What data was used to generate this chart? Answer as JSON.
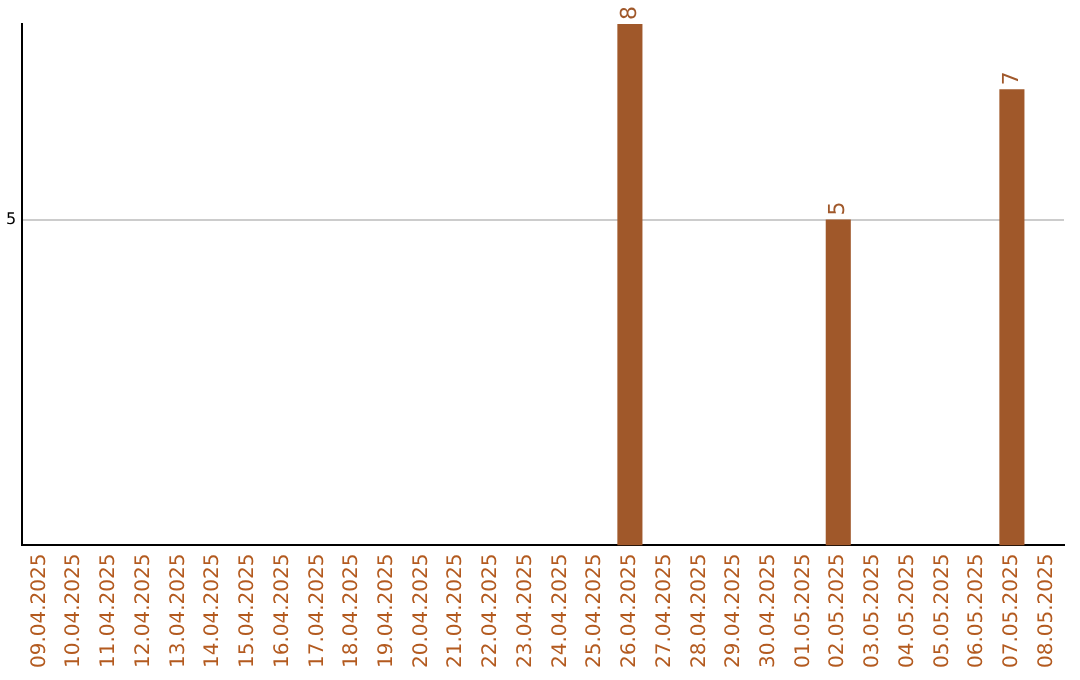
{
  "chart_data": {
    "type": "bar",
    "categories": [
      "09.04.2025",
      "10.04.2025",
      "11.04.2025",
      "12.04.2025",
      "13.04.2025",
      "14.04.2025",
      "15.04.2025",
      "16.04.2025",
      "17.04.2025",
      "18.04.2025",
      "19.04.2025",
      "20.04.2025",
      "21.04.2025",
      "22.04.2025",
      "23.04.2025",
      "24.04.2025",
      "25.04.2025",
      "26.04.2025",
      "27.04.2025",
      "28.04.2025",
      "29.04.2025",
      "30.04.2025",
      "01.05.2025",
      "02.05.2025",
      "03.05.2025",
      "04.05.2025",
      "05.05.2025",
      "06.05.2025",
      "07.05.2025",
      "08.05.2025"
    ],
    "values": [
      null,
      null,
      null,
      null,
      null,
      null,
      null,
      null,
      null,
      null,
      null,
      null,
      null,
      null,
      null,
      null,
      null,
      8,
      null,
      null,
      null,
      null,
      null,
      5,
      null,
      null,
      null,
      null,
      7,
      null
    ],
    "color": "#a0582a",
    "ylim": [
      0,
      8
    ],
    "yticks": [
      5
    ],
    "grid": "y",
    "legend": false,
    "data_labels": true
  }
}
